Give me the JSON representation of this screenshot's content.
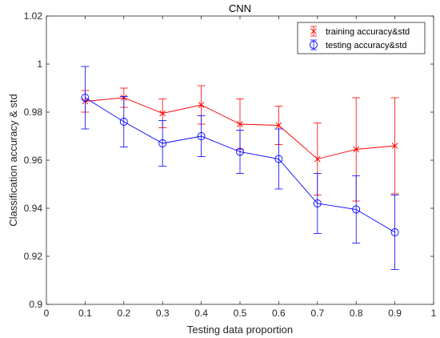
{
  "chart_data": {
    "type": "line",
    "title": "CNN",
    "xlabel": "Testing data proportion",
    "ylabel": "Classification accuracy & std",
    "xlim": [
      0,
      1
    ],
    "ylim": [
      0.9,
      1.02
    ],
    "xticks": [
      "0",
      "0.1",
      "0.2",
      "0.3",
      "0.4",
      "0.5",
      "0.6",
      "0.7",
      "0.8",
      "0.9",
      "1"
    ],
    "yticks": [
      "0.9",
      "0.92",
      "0.94",
      "0.96",
      "0.98",
      "1",
      "1.02"
    ],
    "grid": false,
    "legend_position": "top-right",
    "x": [
      0.1,
      0.2,
      0.3,
      0.4,
      0.5,
      0.6,
      0.7,
      0.8,
      0.9
    ],
    "series": [
      {
        "name": "training accuracy&std",
        "color": "#ff0000",
        "marker": "x",
        "values": [
          0.9845,
          0.986,
          0.9795,
          0.983,
          0.975,
          0.9745,
          0.9605,
          0.9645,
          0.966
        ],
        "std": [
          0.0045,
          0.004,
          0.006,
          0.008,
          0.0105,
          0.008,
          0.015,
          0.0215,
          0.02
        ]
      },
      {
        "name": "testing accuracy&std",
        "color": "#0000ff",
        "marker": "o",
        "values": [
          0.986,
          0.976,
          0.967,
          0.97,
          0.9635,
          0.9605,
          0.942,
          0.9395,
          0.93
        ],
        "std": [
          0.013,
          0.0105,
          0.0095,
          0.0085,
          0.009,
          0.0125,
          0.0125,
          0.014,
          0.0155
        ]
      }
    ]
  }
}
